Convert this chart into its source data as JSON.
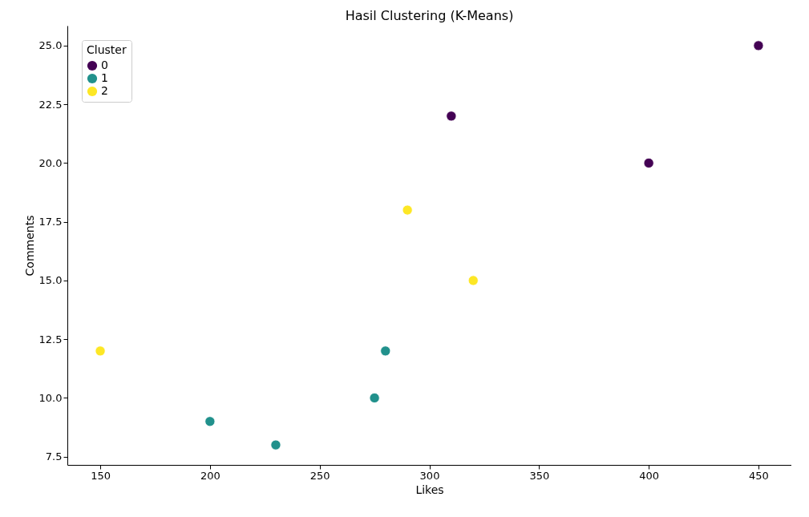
{
  "chart_data": {
    "type": "scatter",
    "title": "Hasil Clustering (K-Means)",
    "xlabel": "Likes",
    "ylabel": "Comments",
    "legend_title": "Cluster",
    "xlim": [
      135,
      465
    ],
    "xticks": [
      150,
      200,
      250,
      300,
      350,
      400,
      450
    ],
    "ylim": [
      7.15,
      25.85
    ],
    "yticks": [
      {
        "value": 7.5,
        "label": "7.5"
      },
      {
        "value": 10,
        "label": "10.0"
      },
      {
        "value": 12.5,
        "label": "12.5"
      },
      {
        "value": 15,
        "label": "15.0"
      },
      {
        "value": 17.5,
        "label": "17.5"
      },
      {
        "value": 20,
        "label": "20.0"
      },
      {
        "value": 22.5,
        "label": "22.5"
      },
      {
        "value": 25,
        "label": "25.0"
      }
    ],
    "grid": false,
    "legend": "top left",
    "marker": "circle",
    "series": [
      {
        "name": "0",
        "color": "#440154",
        "x": [
          310,
          400,
          450
        ],
        "values": [
          22,
          20,
          25
        ]
      },
      {
        "name": "1",
        "color": "#21918c",
        "x": [
          200,
          230,
          275,
          280
        ],
        "values": [
          9,
          8,
          10,
          12
        ]
      },
      {
        "name": "2",
        "color": "#fde725",
        "x": [
          150,
          290,
          320
        ],
        "values": [
          12,
          18,
          15
        ]
      }
    ]
  }
}
